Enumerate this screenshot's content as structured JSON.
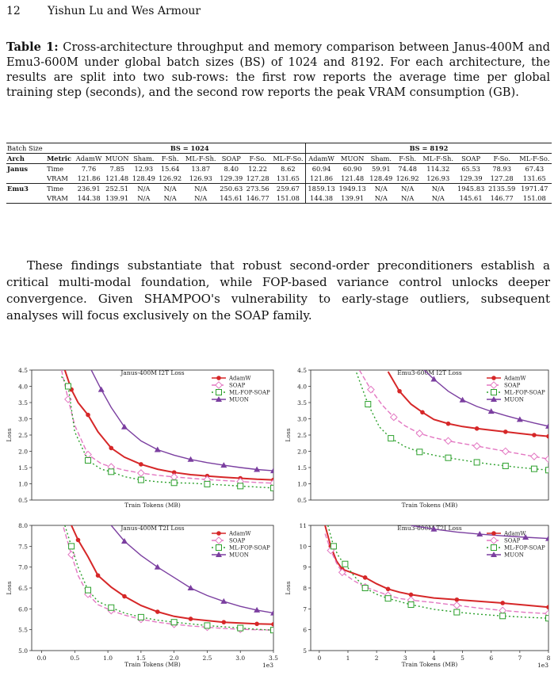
{
  "header": {
    "page": "12",
    "authors": "Yishun Lu and Wes Armour"
  },
  "caption": {
    "label": "Table 1:",
    "text": "Cross-architecture throughput and memory comparison between Janus-400M and Emu3-600M under global batch sizes (BS) of 1024 and 8192. For each architecture, the results are split into two sub-rows: the first row reports the average time per global training step (seconds), and the second row reports the peak VRAM consumption (GB)."
  },
  "table": {
    "batch_label": "Batch Size",
    "bs_groups": [
      "BS = 1024",
      "BS = 8192"
    ],
    "arch_label": "Arch",
    "metric_label": "Metric",
    "columns": [
      "AdamW",
      "MUON",
      "Sham.",
      "F-Sh.",
      "ML-F-Sh.",
      "SOAP",
      "F-So.",
      "ML-F-So."
    ],
    "rows": [
      {
        "arch": "Janus",
        "metric": "Time",
        "bs1024": [
          "7.76",
          "7.85",
          "12.93",
          "15.64",
          "13.87",
          "8.40",
          "12.22",
          "8.62"
        ],
        "bs8192": [
          "60.94",
          "60.90",
          "59.91",
          "74.48",
          "114.32",
          "65.53",
          "78.93",
          "67.43"
        ]
      },
      {
        "arch": "",
        "metric": "VRAM",
        "bs1024": [
          "121.86",
          "121.48",
          "128.49",
          "126.92",
          "126.93",
          "129.39",
          "127.28",
          "131.65"
        ],
        "bs8192": [
          "121.86",
          "121.48",
          "128.49",
          "126.92",
          "126.93",
          "129.39",
          "127.28",
          "131.65"
        ]
      },
      {
        "arch": "Emu3",
        "metric": "Time",
        "bs1024": [
          "236.91",
          "252.51",
          "N/A",
          "N/A",
          "N/A",
          "250.63",
          "273.56",
          "259.67"
        ],
        "bs8192": [
          "1859.13",
          "1949.13",
          "N/A",
          "N/A",
          "N/A",
          "1945.83",
          "2135.59",
          "1971.47"
        ]
      },
      {
        "arch": "",
        "metric": "VRAM",
        "bs1024": [
          "144.38",
          "139.91",
          "N/A",
          "N/A",
          "N/A",
          "145.61",
          "146.77",
          "151.08"
        ],
        "bs8192": [
          "144.38",
          "139.91",
          "N/A",
          "N/A",
          "N/A",
          "145.61",
          "146.77",
          "151.08"
        ]
      }
    ]
  },
  "paragraph": "These findings substantiate that robust second-order preconditioners establish a critical multi-modal foundation, while FOP-based variance control unlocks deeper convergence. Given SHAMPOO's vulnerability to early-stage outliers, subsequent analyses will focus exclusively on the SOAP family.",
  "colors": {
    "AdamW": "#d62728",
    "SOAP": "#e377c2",
    "ML-FOP-SOAP": "#2ca02c",
    "MUON": "#7b3fa0"
  },
  "chart_data": [
    {
      "type": "line",
      "title": "Janus-400M I2T Loss",
      "xlabel": "Train Tokens (MB)",
      "ylabel": "Loss",
      "xlim": [
        -0.15,
        3.5
      ],
      "ylim": [
        0.5,
        4.5
      ],
      "xticks": [],
      "yticks": [
        0.5,
        1.0,
        1.5,
        2.0,
        2.5,
        3.0,
        3.5,
        4.0,
        4.5
      ],
      "xscale_note": "",
      "legend": "top-right",
      "series": [
        {
          "name": "AdamW",
          "x": [
            0.35,
            0.45,
            0.55,
            0.7,
            0.85,
            1.05,
            1.25,
            1.5,
            1.75,
            2.0,
            2.25,
            2.5,
            2.75,
            3.0,
            3.25,
            3.5
          ],
          "y": [
            4.5,
            3.9,
            3.5,
            3.12,
            2.6,
            2.1,
            1.82,
            1.6,
            1.45,
            1.35,
            1.28,
            1.24,
            1.2,
            1.17,
            1.14,
            1.12
          ]
        },
        {
          "name": "SOAP",
          "x": [
            0.3,
            0.4,
            0.5,
            0.7,
            0.9,
            1.05,
            1.25,
            1.5,
            1.75,
            2.0,
            2.25,
            2.5,
            2.75,
            3.0,
            3.25,
            3.5
          ],
          "y": [
            4.5,
            3.6,
            2.8,
            1.9,
            1.62,
            1.52,
            1.42,
            1.33,
            1.26,
            1.21,
            1.17,
            1.13,
            1.1,
            1.07,
            1.04,
            1.02
          ]
        },
        {
          "name": "ML-FOP-SOAP",
          "x": [
            0.3,
            0.4,
            0.5,
            0.7,
            0.9,
            1.05,
            1.25,
            1.5,
            1.75,
            2.0,
            2.25,
            2.5,
            2.75,
            3.0,
            3.25,
            3.5
          ],
          "y": [
            4.3,
            4.0,
            2.6,
            1.72,
            1.45,
            1.37,
            1.22,
            1.12,
            1.06,
            1.03,
            1.02,
            0.99,
            0.96,
            0.93,
            0.9,
            0.87
          ]
        },
        {
          "name": "MUON",
          "x": [
            0.75,
            0.9,
            1.05,
            1.25,
            1.5,
            1.75,
            2.0,
            2.25,
            2.5,
            2.75,
            3.0,
            3.25,
            3.5
          ],
          "y": [
            4.5,
            3.9,
            3.35,
            2.75,
            2.32,
            2.05,
            1.88,
            1.75,
            1.65,
            1.57,
            1.5,
            1.44,
            1.4
          ]
        }
      ]
    },
    {
      "type": "line",
      "title": "Emu3-600M I2T Loss",
      "xlabel": "Train Tokens (MB)",
      "ylabel": "Loss",
      "xlim": [
        -0.3,
        8
      ],
      "ylim": [
        0.5,
        4.5
      ],
      "xticks": [],
      "yticks": [
        0.5,
        1.0,
        1.5,
        2.0,
        2.5,
        3.0,
        3.5,
        4.0,
        4.5
      ],
      "xscale_note": "",
      "legend": "top-right",
      "series": [
        {
          "name": "AdamW",
          "x": [
            2.4,
            2.8,
            3.2,
            3.6,
            4.0,
            4.5,
            5.0,
            5.5,
            6.0,
            6.5,
            7.0,
            7.5,
            8.0
          ],
          "y": [
            4.45,
            3.85,
            3.45,
            3.2,
            2.98,
            2.85,
            2.76,
            2.7,
            2.65,
            2.6,
            2.55,
            2.5,
            2.46
          ]
        },
        {
          "name": "SOAP",
          "x": [
            1.4,
            1.8,
            2.2,
            2.6,
            3.0,
            3.5,
            4.0,
            4.5,
            5.0,
            5.5,
            6.0,
            6.5,
            7.0,
            7.5,
            8.0
          ],
          "y": [
            4.5,
            3.9,
            3.42,
            3.05,
            2.78,
            2.55,
            2.42,
            2.32,
            2.24,
            2.16,
            2.08,
            2.0,
            1.92,
            1.84,
            1.76
          ]
        },
        {
          "name": "ML-FOP-SOAP",
          "x": [
            1.3,
            1.7,
            2.1,
            2.5,
            3.0,
            3.5,
            4.0,
            4.5,
            5.0,
            5.5,
            6.0,
            6.5,
            7.0,
            7.5,
            8.0
          ],
          "y": [
            4.42,
            3.45,
            2.75,
            2.4,
            2.14,
            1.98,
            1.88,
            1.8,
            1.73,
            1.66,
            1.6,
            1.55,
            1.5,
            1.46,
            1.42
          ]
        },
        {
          "name": "MUON",
          "x": [
            3.6,
            4.0,
            4.5,
            5.0,
            5.5,
            6.0,
            6.5,
            7.0,
            7.5,
            8.0
          ],
          "y": [
            4.55,
            4.22,
            3.85,
            3.58,
            3.38,
            3.23,
            3.1,
            2.98,
            2.87,
            2.77
          ]
        }
      ]
    },
    {
      "type": "line",
      "title": "Janus-400M T2I Loss",
      "xlabel": "Train Tokens (MB)",
      "ylabel": "Loss",
      "xlim": [
        -0.15,
        3.5
      ],
      "ylim": [
        5.0,
        8.0
      ],
      "xticks": [
        "0.0",
        "0.5",
        "1.0",
        "1.5",
        "2.0",
        "2.5",
        "3.0",
        "3.5"
      ],
      "yticks": [
        5.0,
        5.5,
        6.0,
        6.5,
        7.0,
        7.5,
        8.0
      ],
      "xscale_note": "1e3",
      "legend": "top-right",
      "series": [
        {
          "name": "AdamW",
          "x": [
            0.45,
            0.55,
            0.7,
            0.85,
            1.05,
            1.25,
            1.5,
            1.75,
            2.0,
            2.25,
            2.5,
            2.75,
            3.0,
            3.25,
            3.5
          ],
          "y": [
            8.0,
            7.65,
            7.25,
            6.8,
            6.52,
            6.3,
            6.08,
            5.93,
            5.82,
            5.76,
            5.72,
            5.68,
            5.66,
            5.64,
            5.63
          ]
        },
        {
          "name": "SOAP",
          "x": [
            0.33,
            0.45,
            0.55,
            0.7,
            0.85,
            1.05,
            1.25,
            1.5,
            1.75,
            2.0,
            2.25,
            2.5,
            2.75,
            3.0,
            3.25,
            3.5
          ],
          "y": [
            7.95,
            7.3,
            6.8,
            6.35,
            6.1,
            5.96,
            5.85,
            5.75,
            5.68,
            5.63,
            5.59,
            5.56,
            5.53,
            5.51,
            5.5,
            5.49
          ]
        },
        {
          "name": "ML-FOP-SOAP",
          "x": [
            0.35,
            0.45,
            0.55,
            0.7,
            0.85,
            1.05,
            1.25,
            1.5,
            1.75,
            2.0,
            2.25,
            2.5,
            2.75,
            3.0,
            3.25,
            3.5
          ],
          "y": [
            8.0,
            7.5,
            7.0,
            6.45,
            6.18,
            6.03,
            5.9,
            5.8,
            5.73,
            5.68,
            5.64,
            5.6,
            5.57,
            5.54,
            5.51,
            5.49
          ]
        },
        {
          "name": "MUON",
          "x": [
            1.05,
            1.25,
            1.5,
            1.75,
            2.0,
            2.25,
            2.5,
            2.75,
            3.0,
            3.25,
            3.5
          ],
          "y": [
            8.0,
            7.62,
            7.28,
            7.0,
            6.75,
            6.5,
            6.32,
            6.18,
            6.06,
            5.97,
            5.9
          ]
        }
      ]
    },
    {
      "type": "line",
      "title": "Emu3-600M T2I Loss",
      "xlabel": "Train Tokens (MB)",
      "ylabel": "Loss",
      "xlim": [
        -0.3,
        8
      ],
      "ylim": [
        5,
        11
      ],
      "xticks": [
        "0",
        "1",
        "2",
        "3",
        "4",
        "5",
        "6",
        "7",
        "8"
      ],
      "yticks": [
        5,
        6,
        7,
        8,
        9,
        10,
        11
      ],
      "xscale_note": "1e3",
      "legend": "top-right",
      "series": [
        {
          "name": "AdamW",
          "x": [
            0.2,
            0.4,
            0.6,
            0.8,
            1.2,
            1.6,
            2.0,
            2.4,
            2.8,
            3.2,
            4.0,
            4.8,
            5.6,
            6.4,
            7.2,
            8.0
          ],
          "y": [
            11.0,
            10.0,
            9.3,
            8.9,
            8.7,
            8.5,
            8.2,
            7.95,
            7.8,
            7.68,
            7.52,
            7.44,
            7.36,
            7.28,
            7.18,
            7.08
          ]
        },
        {
          "name": "SOAP",
          "x": [
            0.2,
            0.4,
            0.6,
            0.8,
            1.2,
            1.6,
            2.0,
            2.4,
            2.8,
            3.2,
            4.0,
            4.8,
            5.6,
            6.4,
            7.2,
            8.0
          ],
          "y": [
            10.6,
            9.8,
            9.2,
            8.75,
            8.35,
            8.05,
            7.85,
            7.65,
            7.5,
            7.42,
            7.3,
            7.17,
            7.03,
            6.92,
            6.83,
            6.77
          ]
        },
        {
          "name": "ML-FOP-SOAP",
          "x": [
            0.3,
            0.5,
            0.7,
            0.9,
            1.2,
            1.6,
            2.0,
            2.4,
            2.8,
            3.2,
            4.0,
            4.8,
            5.6,
            6.4,
            7.2,
            8.0
          ],
          "y": [
            11.0,
            10.0,
            9.45,
            9.15,
            8.6,
            8.0,
            7.7,
            7.5,
            7.35,
            7.2,
            6.98,
            6.84,
            6.74,
            6.66,
            6.6,
            6.55
          ]
        },
        {
          "name": "MUON",
          "x": [
            3.2,
            4.0,
            4.8,
            5.6,
            6.4,
            7.2,
            8.0
          ],
          "y": [
            11.0,
            10.82,
            10.68,
            10.58,
            10.5,
            10.43,
            10.37
          ]
        }
      ]
    }
  ]
}
